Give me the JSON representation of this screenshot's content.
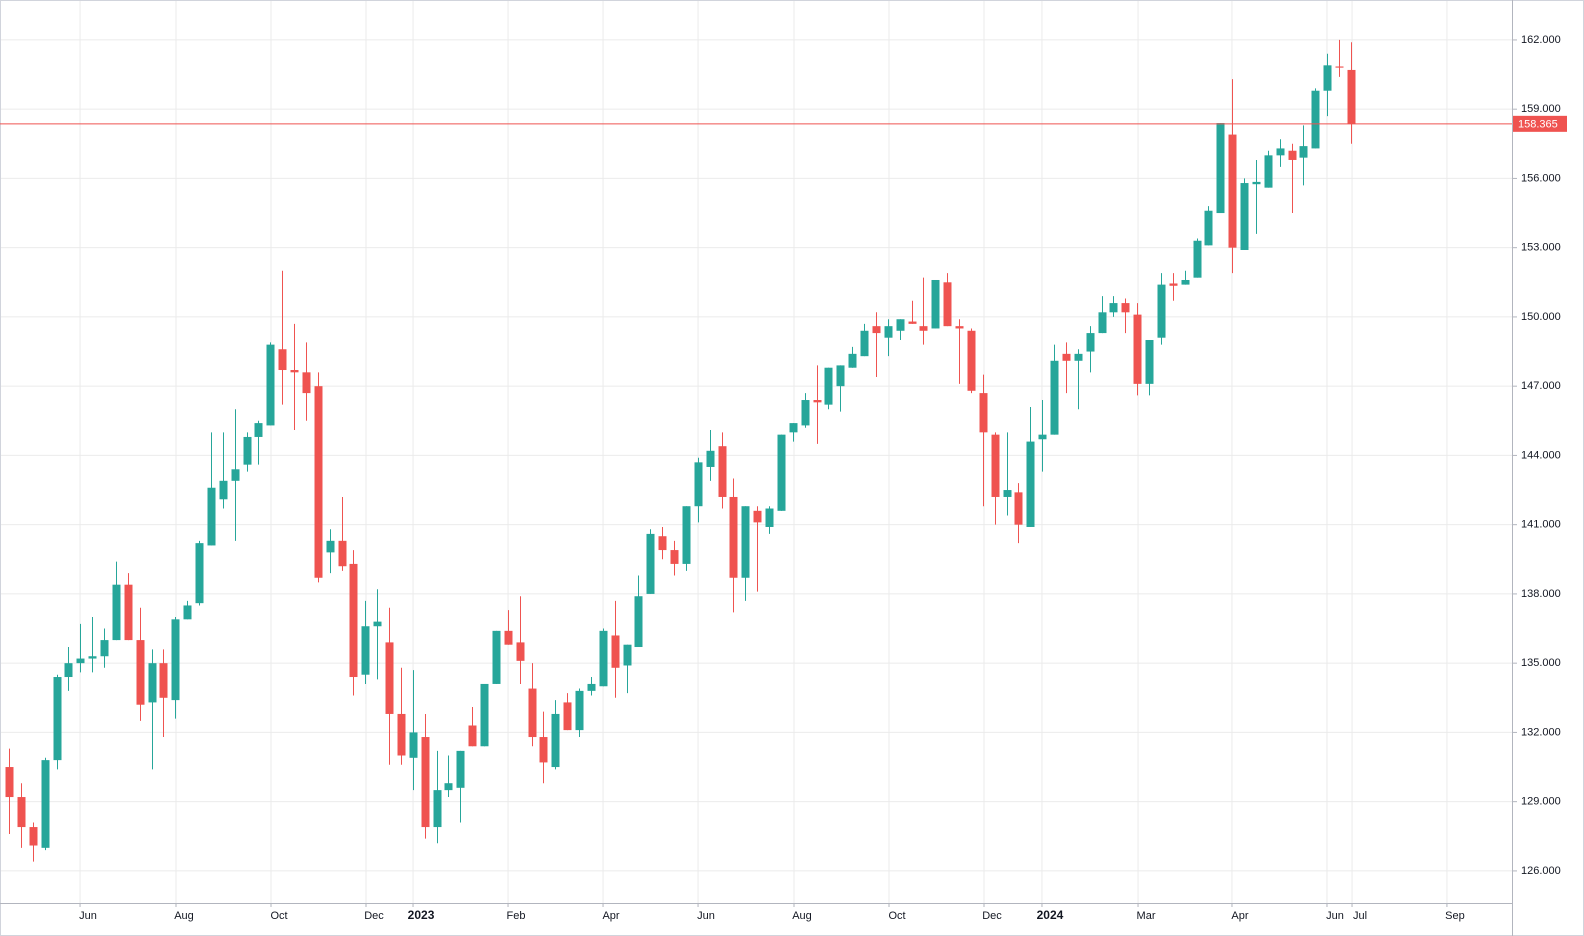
{
  "chart_data": {
    "type": "candlestick",
    "up_color": "#26a69a",
    "down_color": "#ef5350",
    "grid": true,
    "open": [
      130.5,
      129.2,
      127.9,
      127.0,
      130.8,
      134.4,
      135.0,
      135.2,
      135.3,
      136.0,
      138.4,
      136.0,
      133.3,
      135.0,
      133.4,
      136.9,
      137.6,
      140.1,
      142.1,
      142.9,
      143.6,
      144.8,
      145.3,
      148.6,
      147.7,
      147.6,
      147.0,
      139.8,
      140.3,
      139.3,
      134.5,
      136.6,
      135.9,
      132.8,
      130.9,
      131.8,
      127.9,
      129.5,
      129.6,
      132.3,
      131.4,
      134.1,
      136.4,
      135.9,
      133.9,
      131.8,
      130.5,
      133.3,
      132.1,
      133.8,
      134.0,
      136.2,
      134.9,
      135.7,
      138.0,
      140.5,
      139.9,
      139.3,
      141.8,
      143.5,
      144.4,
      142.2,
      138.7,
      141.6,
      140.9,
      141.6,
      145.0,
      145.3,
      146.4,
      146.2,
      147.0,
      147.8,
      148.3,
      149.6,
      149.1,
      149.4,
      149.8,
      149.6,
      149.5,
      151.5,
      149.6,
      149.4,
      146.7,
      144.9,
      142.2,
      142.4,
      140.9,
      144.7,
      144.9,
      148.4,
      148.1,
      148.5,
      149.3,
      150.2,
      150.6,
      150.1,
      147.1,
      149.1,
      151.45,
      151.4,
      151.7,
      153.1,
      154.5,
      157.9,
      152.9,
      155.75,
      155.6,
      157.0,
      157.2,
      156.9,
      157.3,
      159.8,
      160.85,
      160.7
    ],
    "high": [
      131.3,
      129.8,
      128.1,
      130.9,
      134.5,
      135.7,
      136.7,
      137.0,
      136.5,
      139.4,
      138.9,
      137.4,
      135.6,
      135.6,
      137.0,
      137.7,
      140.3,
      145.0,
      145.0,
      146.0,
      145.0,
      145.5,
      148.9,
      152.0,
      149.7,
      148.9,
      147.6,
      140.8,
      142.2,
      139.9,
      137.7,
      138.2,
      137.4,
      134.8,
      134.7,
      132.8,
      131.2,
      131.0,
      131.2,
      133.1,
      134.1,
      136.4,
      137.3,
      137.9,
      135.0,
      132.9,
      133.4,
      133.7,
      133.9,
      134.4,
      136.5,
      137.7,
      135.8,
      138.8,
      140.8,
      140.9,
      140.3,
      141.8,
      143.9,
      145.1,
      145.0,
      143.0,
      141.8,
      141.8,
      141.8,
      144.9,
      145.4,
      146.7,
      147.9,
      147.8,
      147.9,
      148.7,
      149.7,
      150.2,
      149.9,
      149.9,
      150.7,
      151.7,
      151.6,
      151.9,
      149.9,
      149.5,
      147.5,
      145.0,
      145.0,
      142.8,
      146.1,
      146.4,
      148.8,
      148.9,
      148.6,
      149.6,
      150.9,
      150.9,
      150.8,
      150.6,
      149.0,
      151.9,
      151.9,
      152.0,
      153.4,
      154.8,
      158.4,
      160.3,
      156.0,
      156.8,
      157.2,
      157.7,
      157.5,
      158.3,
      159.9,
      161.4,
      162.0,
      161.9
    ],
    "low": [
      127.6,
      127.0,
      126.4,
      126.9,
      130.4,
      133.8,
      134.6,
      134.6,
      134.8,
      136.0,
      136.0,
      132.5,
      130.4,
      131.8,
      132.6,
      136.9,
      137.5,
      140.1,
      141.7,
      140.3,
      143.3,
      143.6,
      145.3,
      146.2,
      145.1,
      145.5,
      138.5,
      138.9,
      139.0,
      133.6,
      134.1,
      134.3,
      130.6,
      130.6,
      129.5,
      127.4,
      127.2,
      129.2,
      128.1,
      131.4,
      131.4,
      134.1,
      135.8,
      134.1,
      131.4,
      129.8,
      130.4,
      132.1,
      131.8,
      133.6,
      134.0,
      133.5,
      133.7,
      135.7,
      138.0,
      139.5,
      138.8,
      139.0,
      141.1,
      142.9,
      141.7,
      137.2,
      137.7,
      138.1,
      140.6,
      141.6,
      144.6,
      145.2,
      144.5,
      146.0,
      145.9,
      147.8,
      148.3,
      147.4,
      148.3,
      149.0,
      149.7,
      148.8,
      149.5,
      149.6,
      147.1,
      146.7,
      141.8,
      141.0,
      141.4,
      140.2,
      140.9,
      143.3,
      144.9,
      146.7,
      146.0,
      147.6,
      149.3,
      150.0,
      149.3,
      146.6,
      146.6,
      148.8,
      150.7,
      151.4,
      151.7,
      153.1,
      154.5,
      151.9,
      152.9,
      153.6,
      155.6,
      156.5,
      154.5,
      155.7,
      157.3,
      158.7,
      160.4,
      157.5
    ],
    "close": [
      129.2,
      127.9,
      127.1,
      130.8,
      134.4,
      135.0,
      135.2,
      135.3,
      136.0,
      138.4,
      136.0,
      133.2,
      135.0,
      133.5,
      136.9,
      137.5,
      140.2,
      142.6,
      142.9,
      143.4,
      144.8,
      145.4,
      148.8,
      147.7,
      147.6,
      146.7,
      138.7,
      140.3,
      139.2,
      134.4,
      136.6,
      136.8,
      132.8,
      131.0,
      132.0,
      127.9,
      129.5,
      129.8,
      131.2,
      131.4,
      134.1,
      136.4,
      135.8,
      135.1,
      131.8,
      130.7,
      132.8,
      132.1,
      133.8,
      134.1,
      136.4,
      134.8,
      135.8,
      137.9,
      140.6,
      139.9,
      139.3,
      141.8,
      143.7,
      144.2,
      142.2,
      138.7,
      141.8,
      141.1,
      141.7,
      144.9,
      145.4,
      146.4,
      146.3,
      147.8,
      147.9,
      148.4,
      149.4,
      149.3,
      149.6,
      149.9,
      149.7,
      149.4,
      151.6,
      149.6,
      149.5,
      146.8,
      145.0,
      142.2,
      142.5,
      141.0,
      144.6,
      144.9,
      148.1,
      148.1,
      148.4,
      149.3,
      150.2,
      150.6,
      150.2,
      147.1,
      149.0,
      151.4,
      151.35,
      151.6,
      153.3,
      154.6,
      158.4,
      153.0,
      155.8,
      155.85,
      157.0,
      157.3,
      156.8,
      157.4,
      159.8,
      160.9,
      160.8,
      158.365
    ],
    "last_price": 158.365,
    "last_price_color": "#ef5350",
    "ylim": [
      124.61,
      163.73
    ],
    "yticks": [
      {
        "value": 126,
        "label": "126.000"
      },
      {
        "value": 129,
        "label": "129.000"
      },
      {
        "value": 132,
        "label": "132.000"
      },
      {
        "value": 135,
        "label": "135.000"
      },
      {
        "value": 138,
        "label": "138.000"
      },
      {
        "value": 141,
        "label": "141.000"
      },
      {
        "value": 144,
        "label": "144.000"
      },
      {
        "value": 147,
        "label": "147.000"
      },
      {
        "value": 150,
        "label": "150.000"
      },
      {
        "value": 153,
        "label": "153.000"
      },
      {
        "value": 156,
        "label": "156.000"
      },
      {
        "value": 159,
        "label": "159.000"
      },
      {
        "value": 162,
        "label": "162.000"
      }
    ],
    "xlim": [
      -0.76,
      126.56
    ],
    "xticks": [
      {
        "value": 5.98,
        "label": "Jun"
      },
      {
        "value": 14.06,
        "label": "Aug"
      },
      {
        "value": 22.06,
        "label": "Oct"
      },
      {
        "value": 30.06,
        "label": "Dec"
      },
      {
        "value": 34.02,
        "label": "2023",
        "bold": true
      },
      {
        "value": 42.02,
        "label": "Feb"
      },
      {
        "value": 50.02,
        "label": "Apr"
      },
      {
        "value": 58.02,
        "label": "Jun"
      },
      {
        "value": 66.1,
        "label": "Aug"
      },
      {
        "value": 74.1,
        "label": "Oct"
      },
      {
        "value": 82.1,
        "label": "Dec"
      },
      {
        "value": 86.98,
        "label": "2024",
        "bold": true
      },
      {
        "value": 95.07,
        "label": "Mar"
      },
      {
        "value": 102.98,
        "label": "Apr"
      },
      {
        "value": 110.98,
        "label": "Jun"
      },
      {
        "value": 113.09,
        "label": "Jul"
      },
      {
        "value": 121.08,
        "label": "Sep"
      }
    ]
  }
}
